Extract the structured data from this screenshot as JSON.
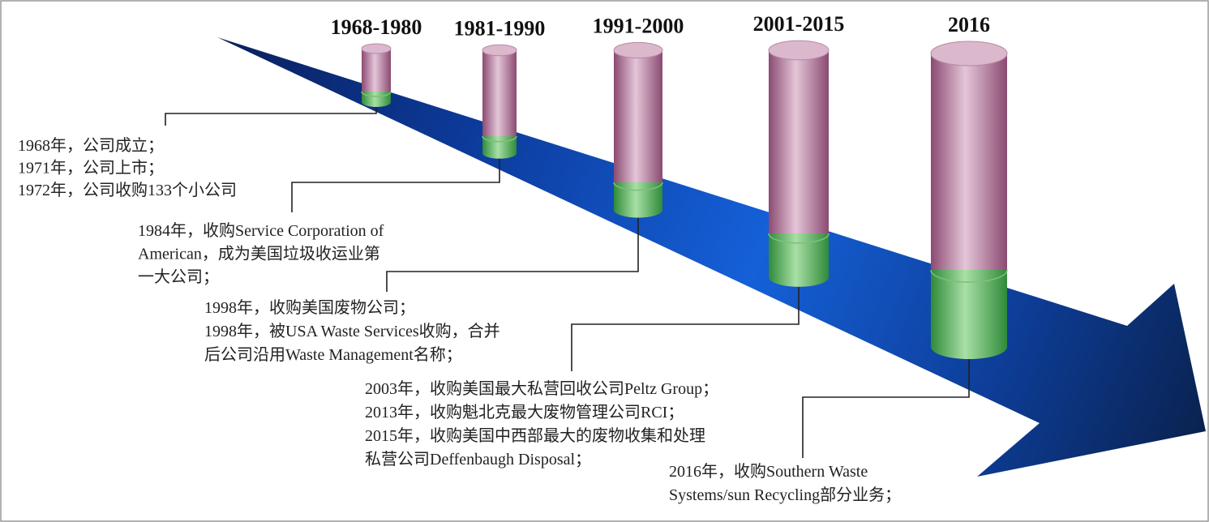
{
  "periods": [
    "1968-1980",
    "1981-1990",
    "1991-2000",
    "2001-2015",
    "2016"
  ],
  "notes": [
    [
      "1968年，公司成立；",
      "1971年，公司上市；",
      "1972年，公司收购133个小公司"
    ],
    [
      "1984年，收购Service Corporation of",
      "American，成为美国垃圾收运业第",
      "一大公司；"
    ],
    [
      "1998年，收购美国废物公司；",
      "1998年，被USA Waste Services收购，合并",
      "后公司沿用Waste Management名称；"
    ],
    [
      "2003年，收购美国最大私营回收公司Peltz Group；",
      "2013年，收购魁北克最大废物管理公司RCI；",
      "2015年，收购美国中西部最大的废物收集和处理",
      "私营公司Deffenbaugh Disposal；"
    ],
    [
      "2016年，收购Southern Waste",
      "Systems/sun Recycling部分业务；"
    ]
  ]
}
